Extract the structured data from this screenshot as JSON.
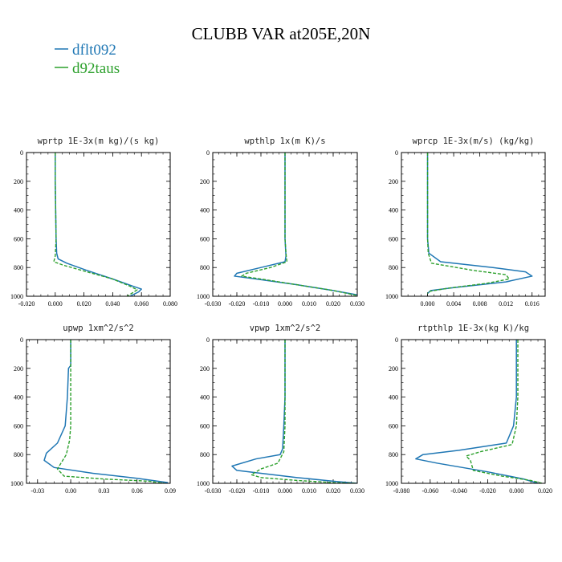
{
  "title": "CLUBB VAR at205E,20N",
  "colors": {
    "dflt092": "#1f77b4",
    "d92taus": "#2ca02c"
  },
  "legend": [
    {
      "name": "dflt092",
      "color": "#1f77b4",
      "dash": "solid"
    },
    {
      "name": "d92taus",
      "color": "#2ca02c",
      "dash": "dashed"
    }
  ],
  "chart_data": [
    {
      "type": "line",
      "title": "wprtp  1E-3x(m kg)/(s kg)",
      "xlim": [
        -0.02,
        0.08
      ],
      "xticks": [
        -0.02,
        0.0,
        0.02,
        0.04,
        0.06,
        0.08
      ],
      "xticklabels": [
        "-0.020",
        "0.000",
        "0.020",
        "0.040",
        "0.060",
        "0.080"
      ],
      "ylim": [
        0,
        1000
      ],
      "yticks": [
        0,
        200,
        400,
        600,
        800,
        1000
      ],
      "yticklabels": [
        "0",
        "200",
        "400",
        "600",
        "800",
        "1000"
      ],
      "series": [
        {
          "name": "dflt092",
          "x": [
            0.0,
            0.0,
            0.0003,
            0.0006,
            0.001,
            0.002,
            0.008,
            0.022,
            0.04,
            0.054,
            0.06,
            0.058,
            0.052
          ],
          "y": [
            0,
            200,
            400,
            600,
            700,
            740,
            770,
            820,
            880,
            930,
            950,
            970,
            1000
          ]
        },
        {
          "name": "d92taus",
          "x": [
            0.0,
            0.0,
            0.0003,
            0.0006,
            0.0,
            -0.001,
            0.006,
            0.022,
            0.04,
            0.052,
            0.057,
            0.054,
            0.05
          ],
          "y": [
            0,
            200,
            400,
            600,
            720,
            760,
            785,
            830,
            880,
            930,
            955,
            975,
            1000
          ]
        }
      ]
    },
    {
      "type": "line",
      "title": "wpthlp  1x(m K)/s",
      "xlim": [
        -0.03,
        0.03
      ],
      "xticks": [
        -0.03,
        -0.02,
        -0.01,
        0.0,
        0.01,
        0.02,
        0.03
      ],
      "xticklabels": [
        "-0.030",
        "-0.020",
        "-0.010",
        "0.000",
        "0.010",
        "0.020",
        "0.030"
      ],
      "ylim": [
        0,
        1000
      ],
      "yticks": [
        0,
        200,
        400,
        600,
        800,
        1000
      ],
      "yticklabels": [
        "0",
        "200",
        "400",
        "600",
        "800",
        "1000"
      ],
      "series": [
        {
          "name": "dflt092",
          "x": [
            0.0,
            0.0,
            0.0,
            0.0,
            0.0004,
            0.0,
            -0.01,
            -0.02,
            -0.021,
            -0.012,
            0.005,
            0.02,
            0.03
          ],
          "y": [
            0,
            200,
            400,
            600,
            720,
            760,
            800,
            840,
            860,
            880,
            920,
            960,
            990
          ]
        },
        {
          "name": "d92taus",
          "x": [
            0.0,
            0.0,
            0.0,
            0.0,
            0.0005,
            0.0008,
            -0.006,
            -0.016,
            -0.018,
            -0.01,
            0.005,
            0.02,
            0.03
          ],
          "y": [
            0,
            200,
            400,
            600,
            720,
            760,
            800,
            840,
            860,
            880,
            920,
            960,
            995
          ]
        }
      ]
    },
    {
      "type": "line",
      "title": "wprcp  1E-3x(m/s) (kg/kg)",
      "xlim": [
        -0.004,
        0.018
      ],
      "xticks": [
        0.0,
        0.004,
        0.008,
        0.012,
        0.016
      ],
      "xticklabels": [
        "0.000",
        "0.004",
        "0.008",
        "0.012",
        "0.016"
      ],
      "ylim": [
        0,
        1000
      ],
      "yticks": [
        0,
        200,
        400,
        600,
        800,
        1000
      ],
      "yticklabels": [
        "0",
        "200",
        "400",
        "600",
        "800",
        "1000"
      ],
      "series": [
        {
          "name": "dflt092",
          "x": [
            0.0,
            0.0,
            0.0,
            0.0,
            0.0002,
            0.002,
            0.01,
            0.015,
            0.016,
            0.012,
            0.004,
            0.0005,
            0.0
          ],
          "y": [
            0,
            200,
            400,
            600,
            700,
            760,
            800,
            830,
            860,
            900,
            940,
            960,
            980
          ]
        },
        {
          "name": "d92taus",
          "x": [
            0.0,
            0.0,
            0.0,
            0.0,
            0.0001,
            0.0006,
            0.007,
            0.012,
            0.0125,
            0.009,
            0.003,
            0.0004,
            0.0
          ],
          "y": [
            0,
            200,
            400,
            600,
            700,
            770,
            820,
            850,
            880,
            910,
            945,
            965,
            980
          ]
        }
      ]
    },
    {
      "type": "line",
      "title": "upwp  1xm^2/s^2",
      "xlim": [
        -0.04,
        0.09
      ],
      "xticks": [
        -0.03,
        0.0,
        0.03,
        0.06,
        0.09
      ],
      "xticklabels": [
        "-0.03",
        "0.00",
        "0.03",
        "0.06",
        "0.09"
      ],
      "ylim": [
        0,
        1000
      ],
      "yticks": [
        0,
        200,
        400,
        600,
        800,
        1000
      ],
      "yticklabels": [
        "0",
        "200",
        "400",
        "600",
        "800",
        "1000"
      ],
      "series": [
        {
          "name": "dflt092",
          "x": [
            0.0,
            0.0,
            -0.002,
            -0.003,
            -0.005,
            -0.012,
            -0.022,
            -0.024,
            -0.015,
            0.02,
            0.06,
            0.088
          ],
          "y": [
            0,
            180,
            200,
            400,
            600,
            720,
            790,
            840,
            890,
            930,
            965,
            995
          ]
        },
        {
          "name": "d92taus",
          "x": [
            0.0,
            0.0,
            0.0,
            0.0,
            -0.001,
            -0.004,
            -0.008,
            -0.012,
            -0.006,
            0.03,
            0.07,
            0.085
          ],
          "y": [
            0,
            200,
            400,
            600,
            700,
            800,
            850,
            900,
            950,
            970,
            985,
            1000
          ]
        }
      ]
    },
    {
      "type": "line",
      "title": "vpwp  1xm^2/s^2",
      "xlim": [
        -0.03,
        0.03
      ],
      "xticks": [
        -0.03,
        -0.02,
        -0.01,
        0.0,
        0.01,
        0.02,
        0.03
      ],
      "xticklabels": [
        "-0.030",
        "-0.020",
        "-0.010",
        "0.000",
        "0.010",
        "0.020",
        "0.030"
      ],
      "ylim": [
        0,
        1000
      ],
      "yticks": [
        0,
        200,
        400,
        600,
        800,
        1000
      ],
      "yticklabels": [
        "0",
        "200",
        "400",
        "600",
        "800",
        "1000"
      ],
      "series": [
        {
          "name": "dflt092",
          "x": [
            0.0,
            0.0,
            0.0,
            -0.0005,
            -0.001,
            -0.002,
            -0.012,
            -0.022,
            -0.02,
            -0.01,
            0.005,
            0.02,
            0.03
          ],
          "y": [
            0,
            200,
            400,
            600,
            760,
            800,
            830,
            880,
            910,
            930,
            960,
            985,
            1000
          ]
        },
        {
          "name": "d92taus",
          "x": [
            0.0,
            0.0,
            0.0,
            0.0,
            -0.0005,
            -0.003,
            -0.01,
            -0.014,
            -0.01,
            0.005,
            0.02,
            0.03
          ],
          "y": [
            0,
            200,
            400,
            600,
            780,
            860,
            900,
            940,
            960,
            980,
            995,
            1000
          ]
        }
      ]
    },
    {
      "type": "line",
      "title": "rtpthlp  1E-3x(kg K)/kg",
      "xlim": [
        -0.08,
        0.02
      ],
      "xticks": [
        -0.08,
        -0.06,
        -0.04,
        -0.02,
        0.0,
        0.02
      ],
      "xticklabels": [
        "-0.080",
        "-0.060",
        "-0.040",
        "-0.020",
        "0.000",
        "0.020"
      ],
      "ylim": [
        0,
        1000
      ],
      "yticks": [
        0,
        200,
        400,
        600,
        800,
        1000
      ],
      "yticklabels": [
        "0",
        "200",
        "400",
        "600",
        "800",
        "1000"
      ],
      "series": [
        {
          "name": "dflt092",
          "x": [
            0.0,
            0.0,
            0.0,
            -0.002,
            -0.007,
            -0.04,
            -0.065,
            -0.07,
            -0.055,
            -0.02,
            0.005,
            0.015
          ],
          "y": [
            0,
            200,
            400,
            600,
            720,
            770,
            800,
            830,
            860,
            920,
            970,
            1000
          ]
        },
        {
          "name": "d92taus",
          "x": [
            0.001,
            0.001,
            0.001,
            0.0,
            -0.003,
            -0.025,
            -0.035,
            -0.032,
            -0.03,
            -0.01,
            0.01,
            0.018
          ],
          "y": [
            0,
            200,
            400,
            600,
            730,
            780,
            810,
            840,
            910,
            950,
            980,
            1000
          ]
        }
      ]
    }
  ]
}
